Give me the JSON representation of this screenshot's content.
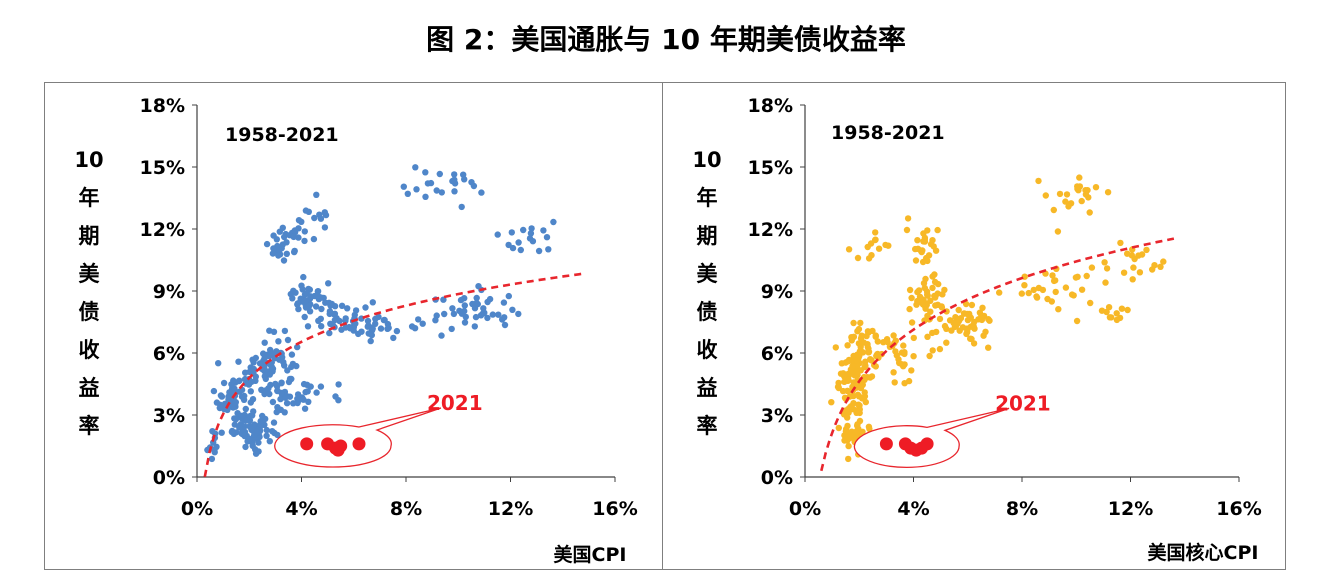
{
  "figure": {
    "title": "图 2：美国通胀与 10 年期美债收益率"
  },
  "colors": {
    "left_points": "#4f86c9",
    "right_points": "#f7b827",
    "fit_line": "#e8262d",
    "highlight": "#ee1c25"
  },
  "chart_data": [
    {
      "type": "scatter",
      "id": "left",
      "title": "",
      "period_label": "1958-2021",
      "xlabel": "美国CPI",
      "ylabel": "10年期美债收益率",
      "xlim": [
        0,
        16
      ],
      "ylim": [
        0,
        18
      ],
      "xticks": [
        "0%",
        "4%",
        "8%",
        "12%",
        "16%"
      ],
      "xtick_values": [
        0,
        4,
        8,
        12,
        16
      ],
      "yticks": [
        "0%",
        "3%",
        "6%",
        "9%",
        "12%",
        "15%",
        "18%"
      ],
      "ytick_values": [
        0,
        3,
        6,
        9,
        12,
        15,
        18
      ],
      "trend": {
        "type": "log",
        "a": 2.52,
        "b": 3.05,
        "x_range": [
          0.3,
          14.8
        ]
      },
      "highlight_label": "2021",
      "highlight_points": [
        [
          4.2,
          1.6
        ],
        [
          5.0,
          1.6
        ],
        [
          5.3,
          1.4
        ],
        [
          5.4,
          1.3
        ],
        [
          5.5,
          1.5
        ],
        [
          6.2,
          1.6
        ]
      ],
      "clusters": [
        {
          "n": 60,
          "cx": 1.4,
          "cy": 3.8,
          "sx": 0.5,
          "sy": 1.0
        },
        {
          "n": 90,
          "cx": 2.7,
          "cy": 5.2,
          "sx": 0.9,
          "sy": 1.4
        },
        {
          "n": 60,
          "cx": 2.2,
          "cy": 2.2,
          "sx": 0.7,
          "sy": 0.7
        },
        {
          "n": 30,
          "cx": 3.3,
          "cy": 11.3,
          "sx": 0.6,
          "sy": 0.6
        },
        {
          "n": 40,
          "cx": 4.3,
          "cy": 8.6,
          "sx": 0.7,
          "sy": 0.6
        },
        {
          "n": 70,
          "cx": 6.3,
          "cy": 7.6,
          "sx": 1.7,
          "sy": 0.7
        },
        {
          "n": 40,
          "cx": 10.5,
          "cy": 8.0,
          "sx": 1.4,
          "sy": 0.8
        },
        {
          "n": 22,
          "cx": 9.5,
          "cy": 14.0,
          "sx": 1.6,
          "sy": 0.8
        },
        {
          "n": 16,
          "cx": 12.8,
          "cy": 11.5,
          "sx": 1.1,
          "sy": 0.8
        },
        {
          "n": 15,
          "cx": 4.5,
          "cy": 12.5,
          "sx": 0.6,
          "sy": 0.8
        },
        {
          "n": 25,
          "cx": 3.8,
          "cy": 3.8,
          "sx": 1.0,
          "sy": 1.0
        },
        {
          "n": 12,
          "cx": 0.6,
          "cy": 1.5,
          "sx": 0.3,
          "sy": 0.8
        }
      ]
    },
    {
      "type": "scatter",
      "id": "right",
      "title": "",
      "period_label": "1958-2021",
      "xlabel": "美国核心CPI",
      "ylabel": "10年期美债收益率",
      "xlim": [
        0,
        16
      ],
      "ylim": [
        0,
        18
      ],
      "xticks": [
        "0%",
        "4%",
        "8%",
        "12%",
        "16%"
      ],
      "xtick_values": [
        0,
        4,
        8,
        12,
        16
      ],
      "yticks": [
        "0%",
        "3%",
        "6%",
        "9%",
        "12%",
        "15%",
        "18%"
      ],
      "ytick_values": [
        0,
        3,
        6,
        9,
        12,
        15,
        18
      ],
      "trend": {
        "type": "log",
        "a": 3.6,
        "b": 2.14,
        "x_range": [
          0.6,
          13.6
        ]
      },
      "highlight_label": "2021",
      "highlight_points": [
        [
          3.0,
          1.6
        ],
        [
          3.7,
          1.6
        ],
        [
          3.9,
          1.4
        ],
        [
          4.1,
          1.3
        ],
        [
          4.3,
          1.4
        ],
        [
          4.5,
          1.6
        ]
      ],
      "clusters": [
        {
          "n": 80,
          "cx": 1.8,
          "cy": 4.2,
          "sx": 0.5,
          "sy": 1.2
        },
        {
          "n": 50,
          "cx": 2.2,
          "cy": 6.2,
          "sx": 0.5,
          "sy": 0.9
        },
        {
          "n": 40,
          "cx": 1.8,
          "cy": 2.0,
          "sx": 0.4,
          "sy": 0.8
        },
        {
          "n": 40,
          "cx": 4.5,
          "cy": 8.6,
          "sx": 0.6,
          "sy": 1.0
        },
        {
          "n": 25,
          "cx": 4.4,
          "cy": 11.2,
          "sx": 0.5,
          "sy": 1.2
        },
        {
          "n": 60,
          "cx": 5.8,
          "cy": 7.5,
          "sx": 1.0,
          "sy": 0.8
        },
        {
          "n": 30,
          "cx": 3.4,
          "cy": 5.8,
          "sx": 0.8,
          "sy": 0.8
        },
        {
          "n": 30,
          "cx": 9.2,
          "cy": 9.0,
          "sx": 1.3,
          "sy": 1.0
        },
        {
          "n": 22,
          "cx": 10.0,
          "cy": 13.5,
          "sx": 1.2,
          "sy": 1.0
        },
        {
          "n": 18,
          "cx": 12.2,
          "cy": 10.6,
          "sx": 1.0,
          "sy": 1.0
        },
        {
          "n": 10,
          "cx": 11.4,
          "cy": 7.8,
          "sx": 0.4,
          "sy": 0.4
        },
        {
          "n": 12,
          "cx": 2.5,
          "cy": 11.0,
          "sx": 0.5,
          "sy": 0.8
        }
      ]
    }
  ]
}
